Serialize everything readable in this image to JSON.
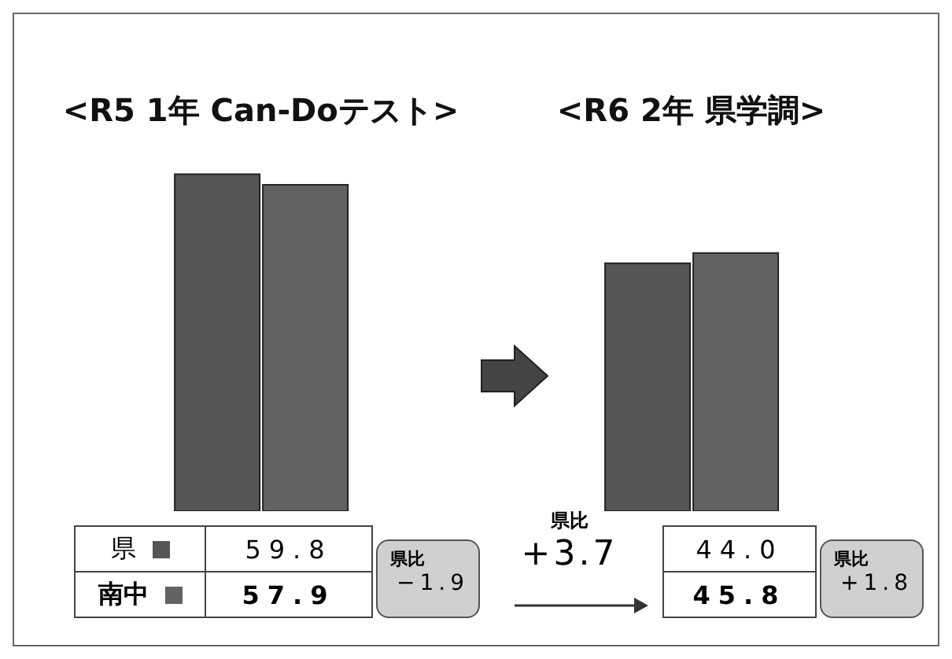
{
  "chart_data": {
    "type": "bar",
    "categories": [
      "<R5 1年 Can-Doテスト>",
      "<R6 2年 県学調>"
    ],
    "series": [
      {
        "name": "県",
        "color": "#555555",
        "values": [
          59.8,
          44.0
        ],
        "value_labels": [
          "59.8",
          "44.0"
        ]
      },
      {
        "name": "南中",
        "color": "#626262",
        "values": [
          57.9,
          45.8
        ],
        "value_labels": [
          "57.9",
          "45.8"
        ]
      }
    ],
    "tick_labels": "x",
    "legend": "bottom",
    "annotations": [
      "県比 −1.9",
      "県比 +3.7",
      "県比 +1.8"
    ]
  }
}
